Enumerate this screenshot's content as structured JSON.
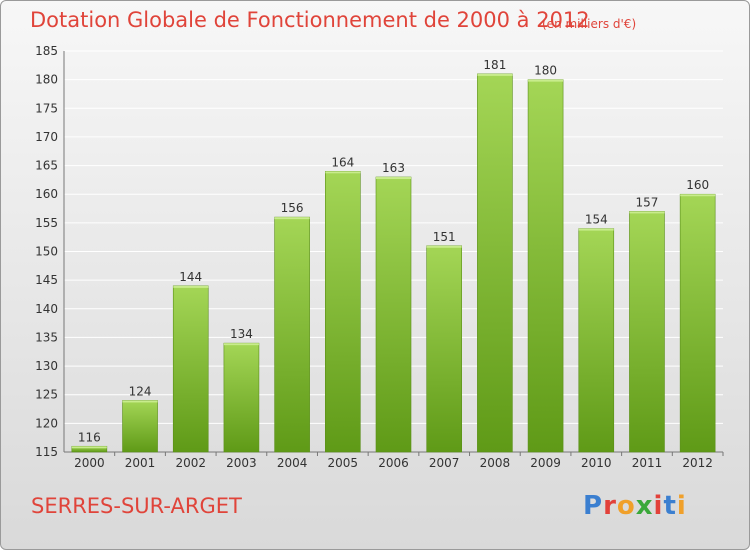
{
  "header": {
    "title": "Dotation Globale de Fonctionnement de 2000 à 2012",
    "unit_note": "(en milliers d'€)"
  },
  "footer": {
    "commune": "SERRES-SUR-ARGET",
    "logo_letters": [
      {
        "char": "P",
        "color": "#3b7fd0"
      },
      {
        "char": "r",
        "color": "#e2413a"
      },
      {
        "char": "o",
        "color": "#f0a02a"
      },
      {
        "char": "x",
        "color": "#3aa83a"
      },
      {
        "char": "i",
        "color": "#e2413a"
      },
      {
        "char": "t",
        "color": "#3b7fd0"
      },
      {
        "char": "i",
        "color": "#f0a02a"
      }
    ]
  },
  "chart_data": {
    "type": "bar",
    "categories": [
      "2000",
      "2001",
      "2002",
      "2003",
      "2004",
      "2005",
      "2006",
      "2007",
      "2008",
      "2009",
      "2010",
      "2011",
      "2012"
    ],
    "values": [
      116,
      124,
      144,
      134,
      156,
      164,
      163,
      151,
      181,
      180,
      154,
      157,
      160
    ],
    "ylim": [
      115,
      185
    ],
    "yticks": [
      115,
      120,
      125,
      130,
      135,
      140,
      145,
      150,
      155,
      160,
      165,
      170,
      175,
      180,
      185
    ],
    "grid": true,
    "bar_color": "#7cbc2e"
  }
}
